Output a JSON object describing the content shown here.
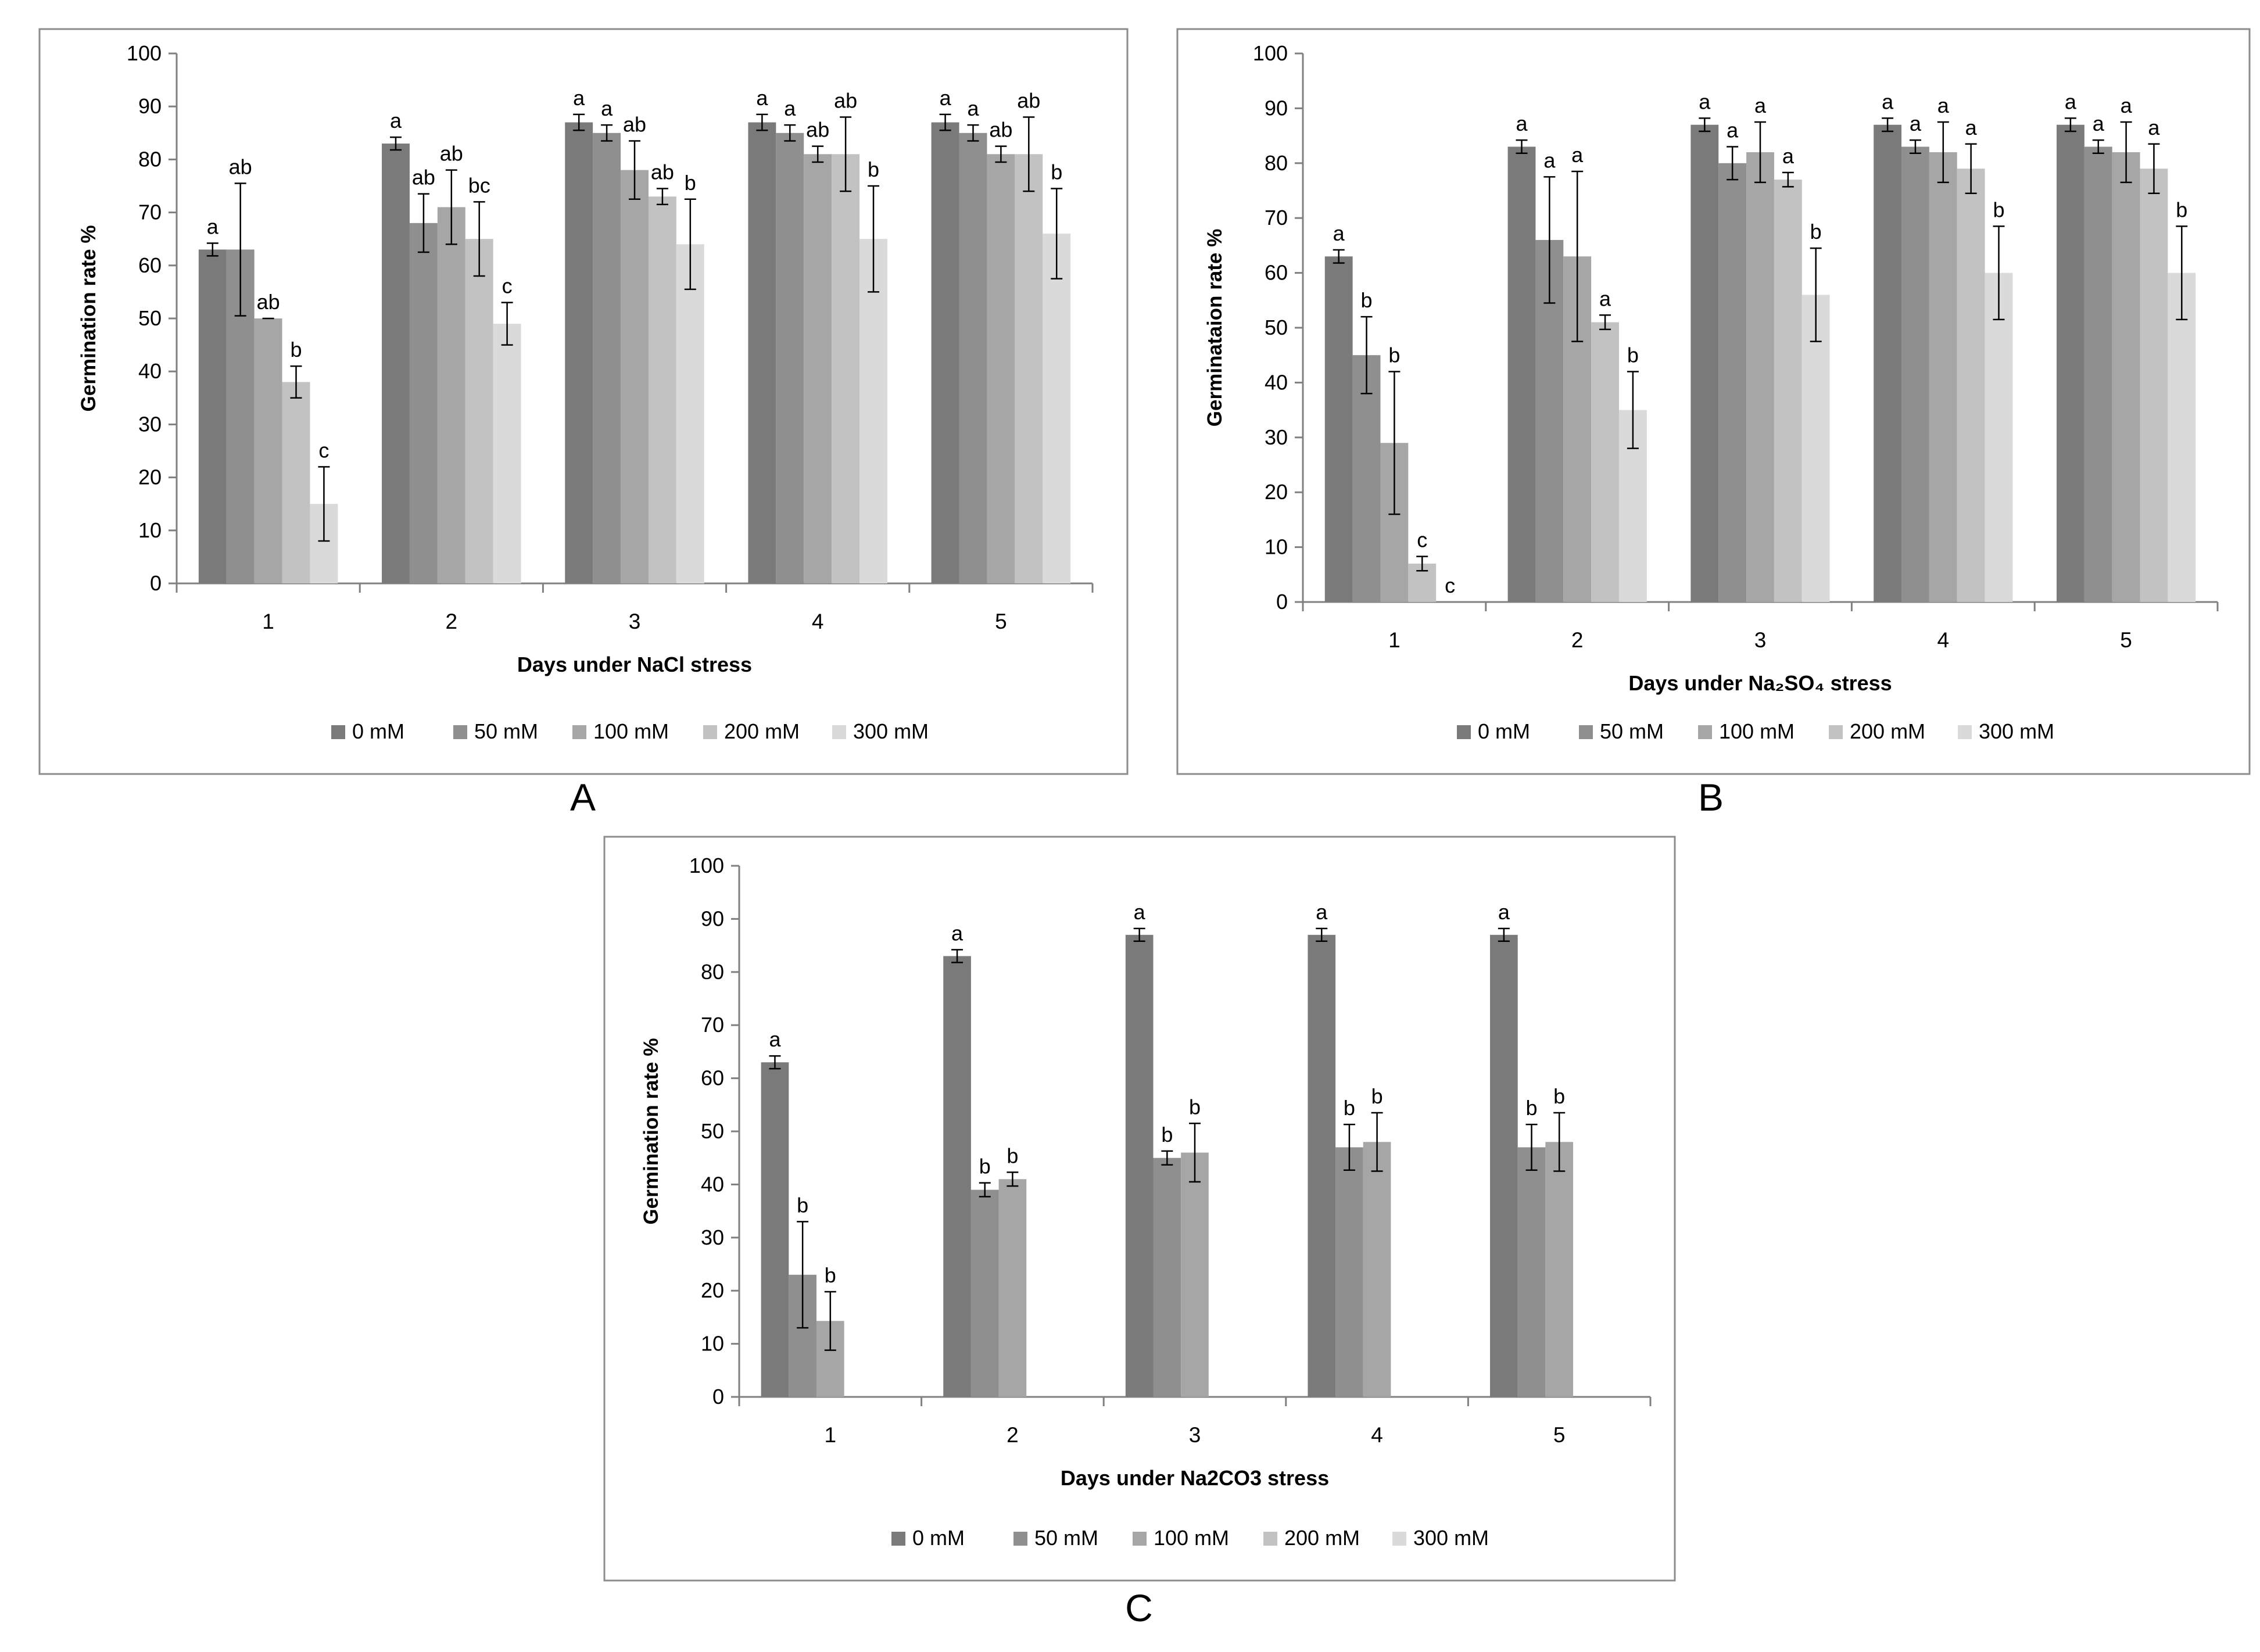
{
  "colors": {
    "frame": "#8c8c8c",
    "axis": "#808080",
    "text": "#000000",
    "series": [
      "#7a7a7a",
      "#8f8f8f",
      "#a6a6a6",
      "#c2c2c2",
      "#dadada"
    ]
  },
  "panel_labels": [
    "A",
    "B",
    "C"
  ],
  "chart_data": [
    {
      "type": "bar",
      "panel": "A",
      "title": "",
      "xlabel": "Days under NaCl stress",
      "ylabel": "Germination rate %",
      "ylim": [
        0,
        100
      ],
      "yticks": [
        "0",
        "10",
        "20",
        "30",
        "40",
        "50",
        "60",
        "70",
        "80",
        "90",
        "100"
      ],
      "categories": [
        "1",
        "2",
        "3",
        "4",
        "5"
      ],
      "legend_position": "bottom",
      "series": [
        {
          "name": "0 mM",
          "values": [
            63,
            83,
            87,
            87,
            87
          ],
          "errors": [
            1.2,
            1.2,
            1.5,
            1.5,
            1.5
          ],
          "labels": [
            "a",
            "a",
            "a",
            "a",
            "a"
          ]
        },
        {
          "name": "50 mM",
          "values": [
            63,
            68,
            85,
            85,
            85
          ],
          "errors": [
            12.5,
            5.5,
            1.5,
            1.5,
            1.5
          ],
          "labels": [
            "ab",
            "ab",
            "a",
            "a",
            "a"
          ]
        },
        {
          "name": "100 mM",
          "values": [
            50,
            71,
            78,
            81,
            81
          ],
          "errors": [
            0,
            7,
            5.5,
            1.5,
            1.5
          ],
          "labels": [
            "ab",
            "ab",
            "ab",
            "ab",
            "ab"
          ]
        },
        {
          "name": "200 mM",
          "values": [
            38,
            65,
            73,
            81,
            81
          ],
          "errors": [
            3,
            7,
            1.5,
            7,
            7
          ],
          "labels": [
            "b",
            "bc",
            "ab",
            "ab",
            "ab"
          ]
        },
        {
          "name": "300 mM",
          "values": [
            15,
            49,
            64,
            65,
            66
          ],
          "errors": [
            7,
            4,
            8.5,
            10,
            8.5
          ],
          "labels": [
            "c",
            "c",
            "b",
            "b",
            "b"
          ]
        }
      ]
    },
    {
      "type": "bar",
      "panel": "B",
      "title": "",
      "xlabel": "Days under Na₂SO₄ stress",
      "ylabel": "Germinataion rate %",
      "ylim": [
        0,
        100
      ],
      "yticks": [
        "0",
        "10",
        "20",
        "30",
        "40",
        "50",
        "60",
        "70",
        "80",
        "90",
        "100"
      ],
      "categories": [
        "1",
        "2",
        "3",
        "4",
        "5"
      ],
      "legend_position": "bottom",
      "series": [
        {
          "name": "0 mM",
          "values": [
            63,
            83,
            87,
            87,
            87
          ],
          "errors": [
            1.2,
            1.2,
            1.2,
            1.2,
            1.2
          ],
          "labels": [
            "a",
            "a",
            "a",
            "a",
            "a"
          ]
        },
        {
          "name": "50 mM",
          "values": [
            45,
            66,
            80,
            83,
            83
          ],
          "errors": [
            7,
            11.5,
            3,
            1.2,
            1.2
          ],
          "labels": [
            "b",
            "a",
            "a",
            "a",
            "a"
          ]
        },
        {
          "name": "100 mM",
          "values": [
            29,
            63,
            82,
            82,
            82
          ],
          "errors": [
            13,
            15.5,
            5.5,
            5.5,
            5.5
          ],
          "labels": [
            "b",
            "a",
            "a",
            "a",
            "a"
          ]
        },
        {
          "name": "200 mM",
          "values": [
            7,
            51,
            77,
            79,
            79
          ],
          "errors": [
            1.3,
            1.3,
            1.3,
            4.5,
            4.5
          ],
          "labels": [
            "c",
            "a",
            "a",
            "a",
            "a"
          ]
        },
        {
          "name": "300 mM",
          "values": [
            0,
            35,
            56,
            60,
            60
          ],
          "errors": [
            0,
            7,
            8.5,
            8.5,
            8.5
          ],
          "labels": [
            "c",
            "b",
            "b",
            "b",
            "b"
          ]
        }
      ]
    },
    {
      "type": "bar",
      "panel": "C",
      "title": "",
      "xlabel": "Days under Na2CO3 stress",
      "ylabel": "Germination rate %",
      "ylim": [
        0,
        100
      ],
      "yticks": [
        "0",
        "10",
        "20",
        "30",
        "40",
        "50",
        "60",
        "70",
        "80",
        "90",
        "100"
      ],
      "categories": [
        "1",
        "2",
        "3",
        "4",
        "5"
      ],
      "legend_position": "bottom",
      "series": [
        {
          "name": "0 mM",
          "values": [
            63,
            83,
            87,
            87,
            87
          ],
          "errors": [
            1.2,
            1.2,
            1.2,
            1.2,
            1.2
          ],
          "labels": [
            "a",
            "a",
            "a",
            "a",
            "a"
          ]
        },
        {
          "name": "50 mM",
          "values": [
            23,
            39,
            45,
            47,
            47
          ],
          "errors": [
            10,
            1.3,
            1.3,
            4.3,
            4.3
          ],
          "labels": [
            "b",
            "b",
            "b",
            "b",
            "b"
          ]
        },
        {
          "name": "100 mM",
          "values": [
            14.3,
            41,
            46,
            48,
            48
          ],
          "errors": [
            5.5,
            1.3,
            5.5,
            5.5,
            5.5
          ],
          "labels": [
            "b",
            "b",
            "b",
            "b",
            "b"
          ]
        },
        {
          "name": "200 mM",
          "values": [
            null,
            null,
            null,
            null,
            null
          ],
          "errors": [
            0,
            0,
            0,
            0,
            0
          ],
          "labels": [
            "",
            "",
            "",
            "",
            ""
          ]
        },
        {
          "name": "300 mM",
          "values": [
            null,
            null,
            null,
            null,
            null
          ],
          "errors": [
            0,
            0,
            0,
            0,
            0
          ],
          "labels": [
            "",
            "",
            "",
            "",
            ""
          ]
        }
      ]
    }
  ]
}
